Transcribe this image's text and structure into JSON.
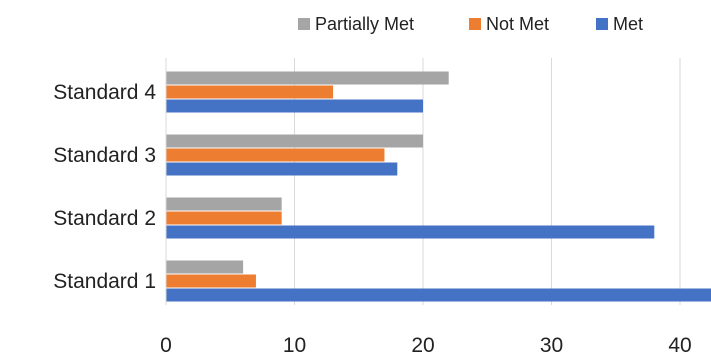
{
  "chart_data": {
    "type": "bar",
    "orientation": "horizontal",
    "categories": [
      "Standard 1",
      "Standard 2",
      "Standard 3",
      "Standard 4"
    ],
    "series": [
      {
        "name": "Partially Met",
        "color": "#A5A5A5",
        "values": [
          6,
          9,
          20,
          22
        ]
      },
      {
        "name": "Not Met",
        "color": "#ED7D31",
        "values": [
          7,
          9,
          17,
          13
        ]
      },
      {
        "name": "Met",
        "color": "#4472C4",
        "values": [
          43,
          38,
          18,
          20
        ]
      }
    ],
    "xlim": [
      0,
      42.5
    ],
    "xticks": [
      0,
      10,
      20,
      30,
      40
    ],
    "grid": "vertical",
    "legend_position": "top"
  }
}
